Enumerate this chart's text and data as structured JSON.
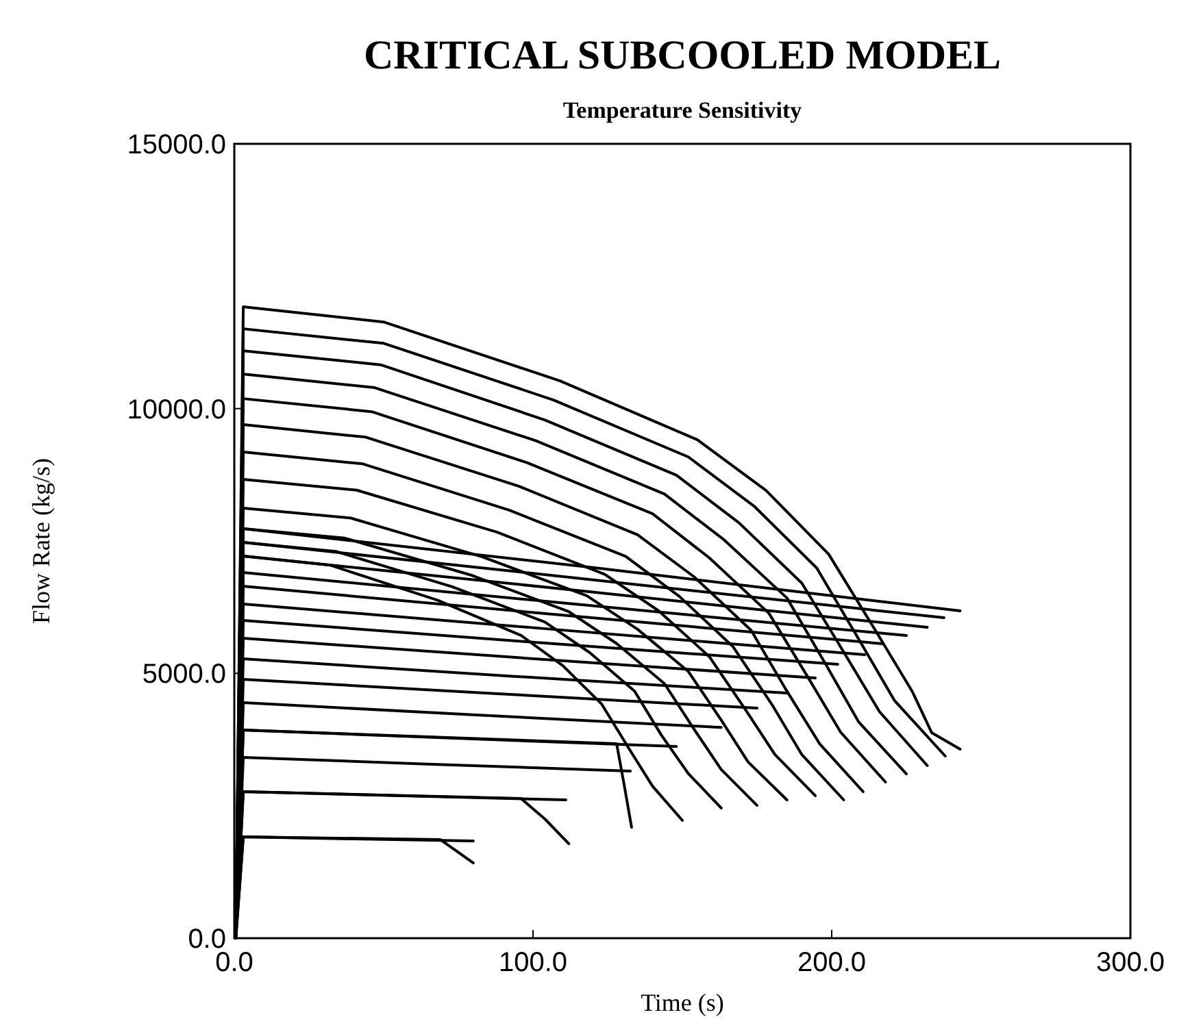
{
  "chart_data": {
    "type": "line",
    "title": "CRITICAL SUBCOOLED MODEL",
    "subtitle": "Temperature Sensitivity",
    "xlabel": "Time (s)",
    "ylabel": "Flow Rate (kg/s)",
    "xlim": [
      0,
      300
    ],
    "ylim": [
      0,
      15000
    ],
    "xticks": [
      {
        "value": 0,
        "label": "0.0"
      },
      {
        "value": 100,
        "label": "100.0"
      },
      {
        "value": 200,
        "label": "200.0"
      },
      {
        "value": 300,
        "label": "300.0"
      }
    ],
    "yticks": [
      {
        "value": 0,
        "label": "0.0"
      },
      {
        "value": 5000,
        "label": "5000.0"
      },
      {
        "value": 10000,
        "label": "10000.0"
      },
      {
        "value": 15000,
        "label": "15000.0"
      }
    ],
    "series": [
      {
        "color": "#000000",
        "x": [
          0.5,
          3,
          50,
          109,
          155,
          178,
          199,
          214,
          227,
          233.5,
          243
        ],
        "values": [
          0,
          11921,
          11636,
          10524,
          9413,
          8456,
          7250,
          5870,
          4655,
          3879,
          3570
        ]
      },
      {
        "color": "#000000",
        "x": [
          0.5,
          3,
          50,
          107,
          152,
          174,
          195,
          209,
          221,
          238
        ],
        "values": [
          0,
          11507,
          11233,
          10160,
          9087,
          8159,
          6989,
          5650,
          4489,
          3440
        ]
      },
      {
        "color": "#000000",
        "x": [
          0.5,
          3,
          49,
          104,
          148,
          169,
          190,
          204,
          216,
          232
        ],
        "values": [
          0,
          11093,
          10827,
          9785,
          8743,
          7841,
          6705,
          5405,
          4277,
          3258
        ]
      },
      {
        "color": "#000000",
        "x": [
          0.5,
          3,
          47,
          101,
          144,
          164,
          185,
          198,
          209,
          225
        ],
        "values": [
          0,
          10653,
          10396,
          9392,
          8388,
          7520,
          6425,
          5172,
          4085,
          3103
        ]
      },
      {
        "color": "#000000",
        "x": [
          0.5,
          3,
          46,
          98,
          140,
          159,
          179,
          192,
          203,
          218
        ],
        "values": [
          0,
          10188,
          9942,
          8979,
          8016,
          7183,
          6134,
          4932,
          3889,
          2948
        ]
      },
      {
        "color": "#000000",
        "x": [
          0.5,
          3,
          44,
          95,
          135,
          154,
          173,
          185,
          196,
          210.5
        ],
        "values": [
          0,
          9697,
          9461,
          8540,
          7618,
          6821,
          5816,
          4666,
          3668,
          2767
        ]
      },
      {
        "color": "#000000",
        "x": [
          0.5,
          3,
          43,
          92,
          131,
          149,
          167,
          180,
          190,
          204
        ],
        "values": [
          0,
          9180,
          8957,
          8083,
          7210,
          6454,
          5502,
          4412,
          3466,
          2612
        ]
      },
      {
        "color": "#000000",
        "x": [
          0.5,
          3,
          41,
          88,
          124,
          142,
          159,
          171,
          181,
          194.5
        ],
        "values": [
          0,
          8663,
          8460,
          7666,
          6871,
          6184,
          5318,
          4327,
          3467,
          2690
        ]
      },
      {
        "color": "#000000",
        "x": [
          0.5,
          3,
          39,
          83,
          118,
          135,
          152,
          163,
          172,
          185
        ],
        "values": [
          0,
          8120,
          7933,
          7200,
          6468,
          5834,
          5036,
          4121,
          3328,
          2612
        ]
      },
      {
        "color": "#000000",
        "x": [
          0.5,
          3,
          37,
          79,
          112,
          128,
          144,
          154,
          163,
          175
        ],
        "values": [
          0,
          7732,
          7554,
          6860,
          6165,
          5564,
          4807,
          3939,
          3187,
          2508
        ]
      },
      {
        "color": "#000000",
        "x": [
          0.5,
          3,
          34,
          73,
          104,
          119,
          134,
          143,
          152,
          163
        ],
        "values": [
          0,
          7474,
          7303,
          6636,
          5969,
          5392,
          4665,
          3832,
          3109,
          2457
        ]
      },
      {
        "color": "#000000",
        "x": [
          0.5,
          3,
          32,
          68,
          96,
          110,
          123,
          132,
          140,
          150
        ],
        "values": [
          0,
          7215,
          7045,
          6382,
          5718,
          5144,
          4420,
          3592,
          2873,
          2224
        ]
      },
      {
        "color": "#000000",
        "x": [
          0.5,
          3,
          128,
          130.5,
          133
        ],
        "values": [
          0,
          3930,
          3672,
          2900,
          2095
        ]
      },
      {
        "color": "#000000",
        "x": [
          0.5,
          3,
          96,
          104,
          112
        ],
        "values": [
          0,
          2767,
          2637,
          2250,
          1784
        ]
      },
      {
        "color": "#000000",
        "x": [
          0.5,
          3,
          69,
          75,
          80
        ],
        "values": [
          0,
          1914,
          1862,
          1620,
          1422
        ]
      },
      {
        "color": "#000000",
        "x": [
          0.5,
          3,
          120,
          243
        ],
        "values": [
          0,
          7732,
          7000,
          6180
        ]
      },
      {
        "color": "#000000",
        "x": [
          0.5,
          3,
          118,
          237.6
        ],
        "values": [
          0,
          7474,
          6780,
          6051
        ]
      },
      {
        "color": "#000000",
        "x": [
          0.5,
          3,
          116,
          232
        ],
        "values": [
          0,
          7215,
          6560,
          5870
        ]
      },
      {
        "color": "#000000",
        "x": [
          0.5,
          3,
          112,
          225
        ],
        "values": [
          0,
          6905,
          6320,
          5715
        ]
      },
      {
        "color": "#000000",
        "x": [
          0.5,
          3,
          108,
          217
        ],
        "values": [
          0,
          6646,
          6110,
          5560
        ]
      },
      {
        "color": "#000000",
        "x": [
          0.5,
          3,
          105,
          211
        ],
        "values": [
          0,
          6310,
          5840,
          5353
        ]
      },
      {
        "color": "#000000",
        "x": [
          0.5,
          3,
          100,
          202
        ],
        "values": [
          0,
          6000,
          5590,
          5172
        ]
      },
      {
        "color": "#000000",
        "x": [
          0.5,
          3,
          97,
          194.5
        ],
        "values": [
          0,
          5663,
          5290,
          4913
        ]
      },
      {
        "color": "#000000",
        "x": [
          0.5,
          3,
          92,
          185
        ],
        "values": [
          0,
          5275,
          4950,
          4629
        ]
      },
      {
        "color": "#000000",
        "x": [
          0.5,
          3,
          87,
          175
        ],
        "values": [
          0,
          4888,
          4620,
          4344
        ]
      },
      {
        "color": "#000000",
        "x": [
          0.5,
          3,
          81,
          163
        ],
        "values": [
          0,
          4448,
          4215,
          3980
        ]
      },
      {
        "color": "#000000",
        "x": [
          0.5,
          3,
          74,
          148
        ],
        "values": [
          0,
          3930,
          3775,
          3620
        ]
      },
      {
        "color": "#000000",
        "x": [
          0.5,
          3,
          66,
          132.6
        ],
        "values": [
          0,
          3414,
          3285,
          3155
        ]
      },
      {
        "color": "#000000",
        "x": [
          0.5,
          3,
          56,
          111
        ],
        "values": [
          0,
          2767,
          2690,
          2612
        ]
      },
      {
        "color": "#000000",
        "x": [
          0.5,
          3,
          40,
          80
        ],
        "values": [
          0,
          1914,
          1875,
          1836
        ]
      }
    ]
  }
}
